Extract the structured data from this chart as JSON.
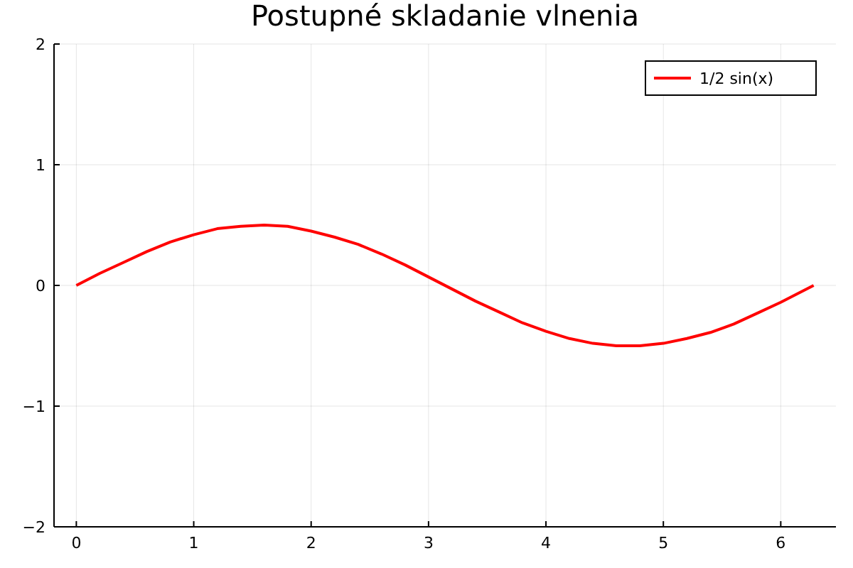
{
  "chart_data": {
    "type": "line",
    "title": "Postupné skladanie vlnenia",
    "xlim": [
      -0.19,
      6.47
    ],
    "ylim": [
      -2,
      2
    ],
    "xticks": [
      0,
      1,
      2,
      3,
      4,
      5,
      6
    ],
    "yticks": [
      {
        "value": -2,
        "label": "−2"
      },
      {
        "value": -1,
        "label": "−1"
      },
      0,
      1,
      2
    ],
    "grid": true,
    "legend": "top right",
    "line_style": "solid",
    "marker": "none",
    "series": [
      {
        "name": "1/2 sin(x)",
        "color": "#ff0000",
        "x": [
          0,
          0.2,
          0.4,
          0.6,
          0.8,
          1.0,
          1.2,
          1.4,
          1.6,
          1.8,
          2.0,
          2.2,
          2.4,
          2.6,
          2.8,
          3.0,
          3.2,
          3.4,
          3.6,
          3.8,
          4.0,
          4.2,
          4.4,
          4.6,
          4.8,
          5.0,
          5.2,
          5.4,
          5.6,
          5.8,
          6.0,
          6.28
        ],
        "values": [
          0,
          0.1,
          0.19,
          0.28,
          0.36,
          0.42,
          0.47,
          0.49,
          0.5,
          0.49,
          0.45,
          0.4,
          0.34,
          0.26,
          0.17,
          0.07,
          -0.03,
          -0.13,
          -0.22,
          -0.31,
          -0.38,
          -0.44,
          -0.48,
          -0.5,
          -0.5,
          -0.48,
          -0.44,
          -0.39,
          -0.32,
          -0.23,
          -0.14,
          0
        ]
      }
    ]
  }
}
